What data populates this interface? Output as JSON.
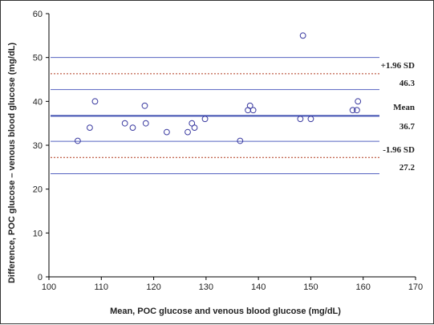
{
  "chart_data": {
    "type": "scatter",
    "title": "",
    "xlabel": "Mean, POC glucose and venous blood glucose (mg/dL)",
    "ylabel": "Difference, POC glucose – venous blood glucose (mg/dL)",
    "xlim": [
      100,
      170
    ],
    "ylim": [
      0,
      60
    ],
    "xticks": [
      "100",
      "110",
      "120",
      "130",
      "140",
      "150",
      "160",
      "170"
    ],
    "yticks": [
      "0",
      "10",
      "20",
      "30",
      "40",
      "50",
      "60"
    ],
    "grid": false,
    "points": [
      {
        "x": 105.5,
        "y": 31
      },
      {
        "x": 107.8,
        "y": 34
      },
      {
        "x": 108.8,
        "y": 40
      },
      {
        "x": 114.5,
        "y": 35
      },
      {
        "x": 116.0,
        "y": 34
      },
      {
        "x": 118.3,
        "y": 39
      },
      {
        "x": 118.5,
        "y": 35
      },
      {
        "x": 122.5,
        "y": 33
      },
      {
        "x": 126.5,
        "y": 33
      },
      {
        "x": 127.3,
        "y": 35
      },
      {
        "x": 127.8,
        "y": 34
      },
      {
        "x": 129.8,
        "y": 36
      },
      {
        "x": 136.5,
        "y": 31
      },
      {
        "x": 138.0,
        "y": 38
      },
      {
        "x": 138.4,
        "y": 39
      },
      {
        "x": 139.0,
        "y": 38
      },
      {
        "x": 148.0,
        "y": 36
      },
      {
        "x": 148.5,
        "y": 55
      },
      {
        "x": 150.0,
        "y": 36
      },
      {
        "x": 158.0,
        "y": 38
      },
      {
        "x": 158.8,
        "y": 38
      },
      {
        "x": 159.0,
        "y": 40
      }
    ],
    "reference_lines": {
      "mean": {
        "value": 36.7,
        "label": "Mean",
        "value_label": "36.7"
      },
      "upper_loa": {
        "value": 46.3,
        "label": "+1.96 SD",
        "value_label": "46.3"
      },
      "lower_loa": {
        "value": 27.2,
        "label": "-1.96 SD",
        "value_label": "27.2"
      },
      "zero": {
        "value": 0
      },
      "ci_bands": [
        50.0,
        42.7,
        30.9,
        23.5
      ]
    },
    "colors": {
      "points": "#3a3aa0",
      "mean_line": "#3d4db0",
      "ci_line": "#5563c0",
      "loa_line": "#b03a1e",
      "zero_line": "#e89a60"
    }
  }
}
